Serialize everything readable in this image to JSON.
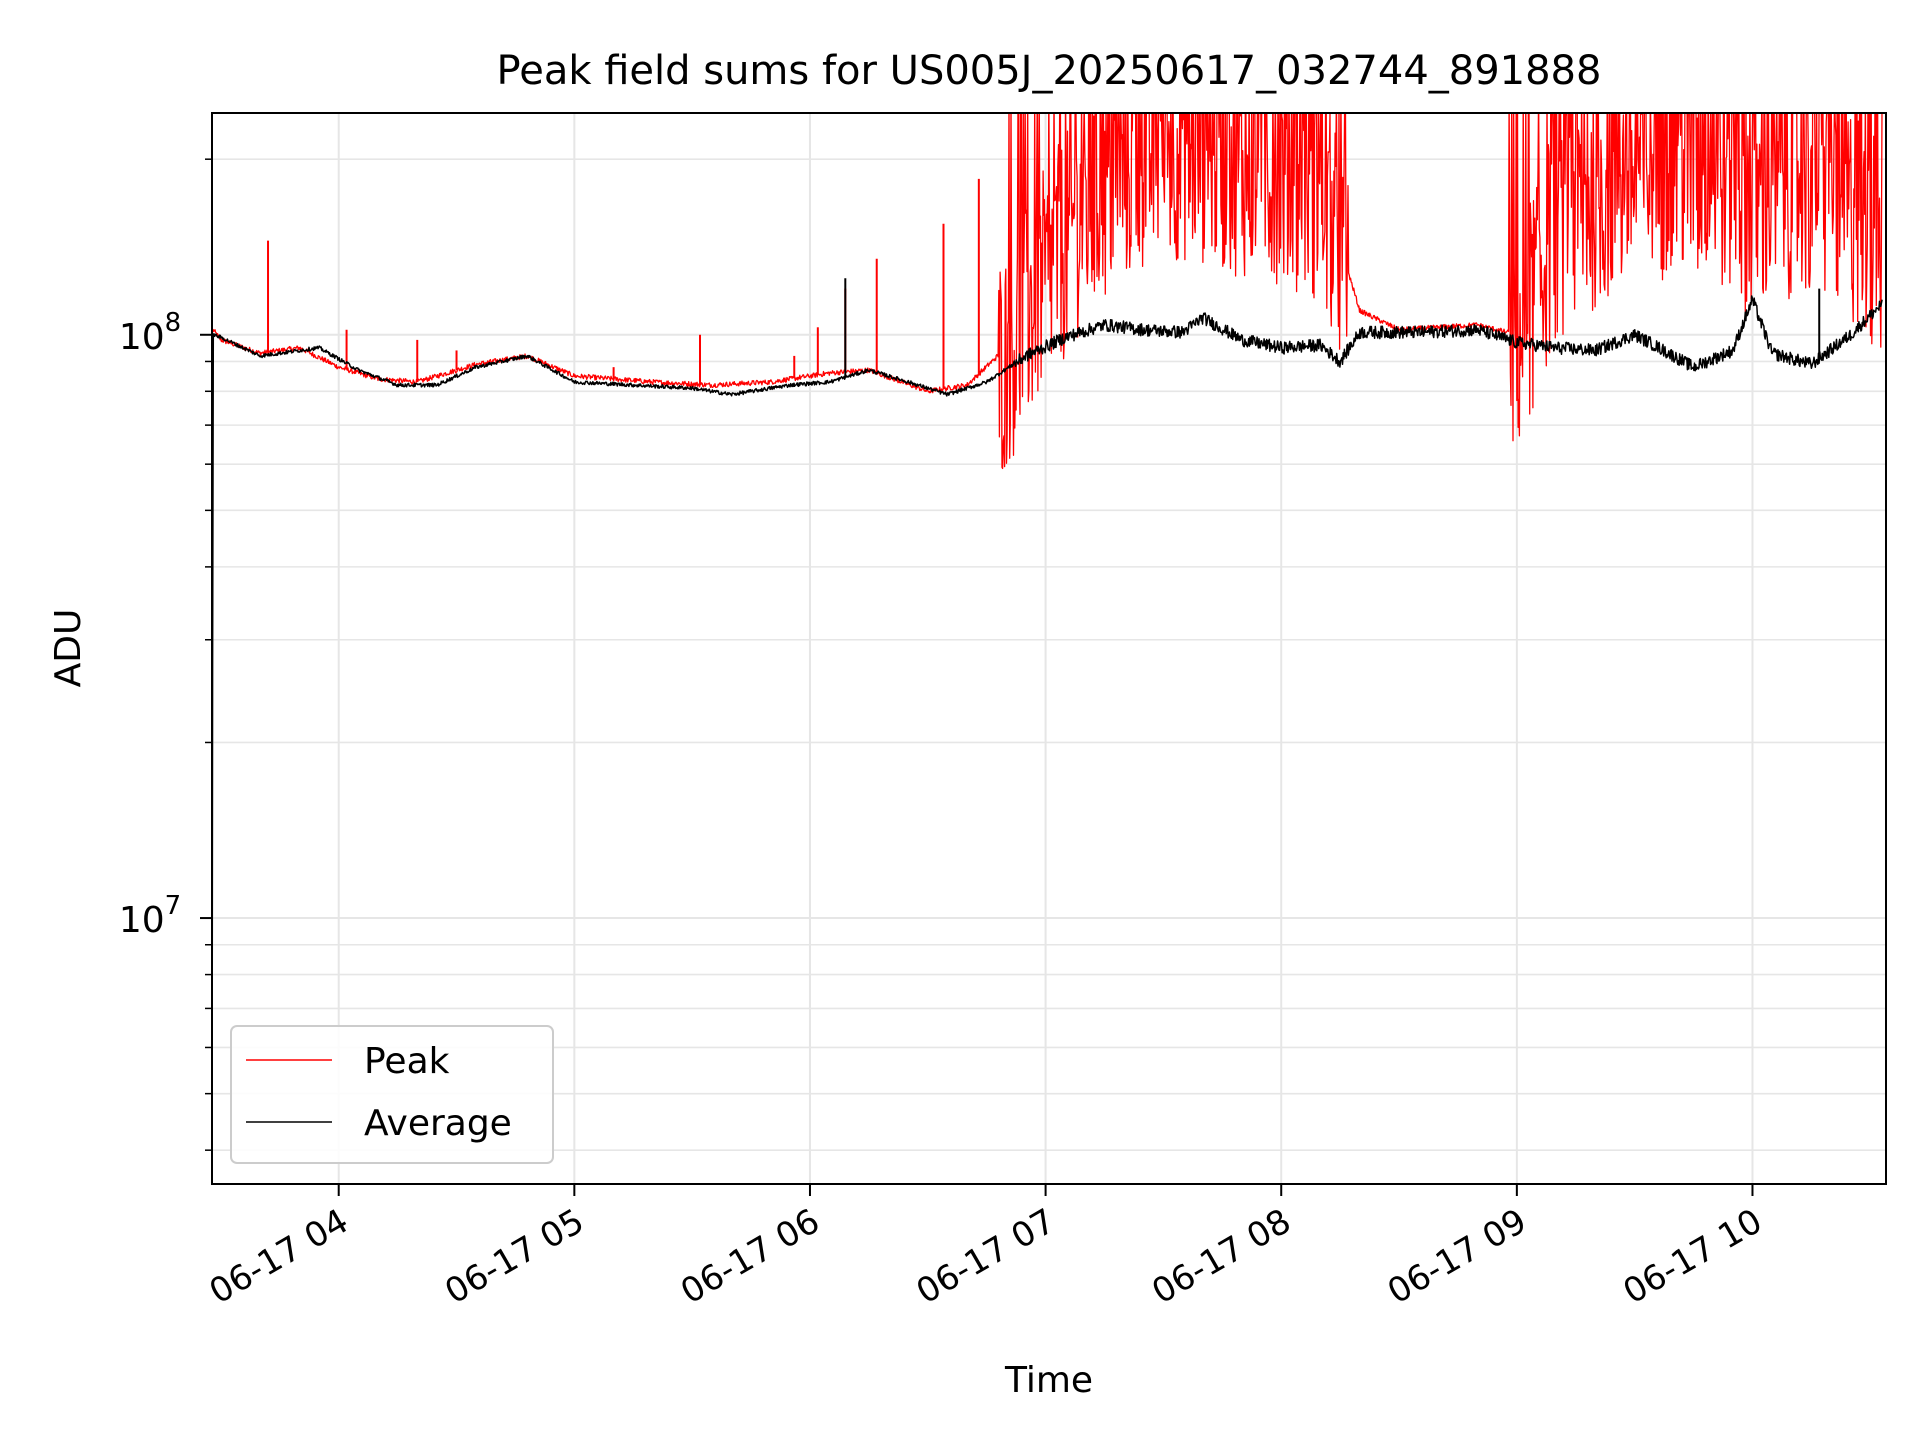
{
  "chart_data": {
    "type": "line",
    "title": "Peak field sums for US005J_20250617_032744_891888",
    "xlabel": "Time",
    "ylabel": "ADU",
    "y_scale": "log",
    "ylim": [
      3500000,
      240000000
    ],
    "xlim": [
      "2025-06-17 03:27:44",
      "2025-06-17 10:34:00"
    ],
    "x_ticks": [
      {
        "t": "2025-06-17 04:00",
        "label": "06-17 04"
      },
      {
        "t": "2025-06-17 05:00",
        "label": "06-17 05"
      },
      {
        "t": "2025-06-17 06:00",
        "label": "06-17 06"
      },
      {
        "t": "2025-06-17 07:00",
        "label": "06-17 07"
      },
      {
        "t": "2025-06-17 08:00",
        "label": "06-17 08"
      },
      {
        "t": "2025-06-17 09:00",
        "label": "06-17 09"
      },
      {
        "t": "2025-06-17 10:00",
        "label": "06-17 10"
      }
    ],
    "y_ticks": [
      {
        "value": 10000000,
        "base": "10",
        "exp": "7"
      },
      {
        "value": 100000000,
        "base": "10",
        "exp": "8"
      }
    ],
    "grid": true,
    "legend": "lower-left",
    "series": [
      {
        "name": "Peak",
        "color": "#ff0000",
        "x": [
          "2025-06-17 03:28",
          "2025-06-17 03:30",
          "2025-06-17 03:40",
          "2025-06-17 03:50",
          "2025-06-17 04:00",
          "2025-06-17 04:10",
          "2025-06-17 04:20",
          "2025-06-17 04:35",
          "2025-06-17 04:48",
          "2025-06-17 05:00",
          "2025-06-17 05:20",
          "2025-06-17 05:35",
          "2025-06-17 05:50",
          "2025-06-17 06:05",
          "2025-06-17 06:15",
          "2025-06-17 06:30",
          "2025-06-17 06:40",
          "2025-06-17 06:50",
          "2025-06-17 07:00",
          "2025-06-17 07:10",
          "2025-06-17 07:20",
          "2025-06-17 07:30",
          "2025-06-17 07:40",
          "2025-06-17 07:50",
          "2025-06-17 08:00",
          "2025-06-17 08:10",
          "2025-06-17 08:20",
          "2025-06-17 08:30",
          "2025-06-17 08:40",
          "2025-06-17 08:50",
          "2025-06-17 09:00",
          "2025-06-17 09:10",
          "2025-06-17 09:20",
          "2025-06-17 09:30",
          "2025-06-17 09:40",
          "2025-06-17 09:50",
          "2025-06-17 10:00",
          "2025-06-17 10:10",
          "2025-06-17 10:20",
          "2025-06-17 10:33"
        ],
        "y": [
          102000000,
          98000000,
          93000000,
          95000000,
          88000000,
          84000000,
          83000000,
          89000000,
          92000000,
          85000000,
          83000000,
          82000000,
          83000000,
          86000000,
          87000000,
          80000000,
          82000000,
          95000000,
          130000000,
          170000000,
          200000000,
          220000000,
          215000000,
          205000000,
          200000000,
          185000000,
          110000000,
          102000000,
          103000000,
          104000000,
          100000000,
          160000000,
          180000000,
          200000000,
          205000000,
          200000000,
          175000000,
          190000000,
          185000000,
          150000000
        ],
        "spikes": [
          {
            "t": "2025-06-17 03:42",
            "y": 145000000
          },
          {
            "t": "2025-06-17 04:02",
            "y": 102000000
          },
          {
            "t": "2025-06-17 04:20",
            "y": 98000000
          },
          {
            "t": "2025-06-17 04:30",
            "y": 94000000
          },
          {
            "t": "2025-06-17 05:10",
            "y": 88000000
          },
          {
            "t": "2025-06-17 05:32",
            "y": 100000000
          },
          {
            "t": "2025-06-17 05:56",
            "y": 92000000
          },
          {
            "t": "2025-06-17 06:02",
            "y": 103000000
          },
          {
            "t": "2025-06-17 06:09",
            "y": 120000000
          },
          {
            "t": "2025-06-17 06:17",
            "y": 135000000
          },
          {
            "t": "2025-06-17 06:34",
            "y": 155000000
          },
          {
            "t": "2025-06-17 06:43",
            "y": 185000000
          }
        ]
      },
      {
        "name": "Average",
        "color": "#000000",
        "x": [
          "2025-06-17 03:27:44",
          "2025-06-17 03:28",
          "2025-06-17 03:30",
          "2025-06-17 03:40",
          "2025-06-17 03:50",
          "2025-06-17 03:55",
          "2025-06-17 04:05",
          "2025-06-17 04:15",
          "2025-06-17 04:25",
          "2025-06-17 04:35",
          "2025-06-17 04:48",
          "2025-06-17 05:00",
          "2025-06-17 05:15",
          "2025-06-17 05:30",
          "2025-06-17 05:40",
          "2025-06-17 05:55",
          "2025-06-17 06:05",
          "2025-06-17 06:15",
          "2025-06-17 06:25",
          "2025-06-17 06:35",
          "2025-06-17 06:45",
          "2025-06-17 06:55",
          "2025-06-17 07:05",
          "2025-06-17 07:15",
          "2025-06-17 07:25",
          "2025-06-17 07:35",
          "2025-06-17 07:40",
          "2025-06-17 07:50",
          "2025-06-17 08:00",
          "2025-06-17 08:10",
          "2025-06-17 08:15",
          "2025-06-17 08:20",
          "2025-06-17 08:35",
          "2025-06-17 08:50",
          "2025-06-17 09:00",
          "2025-06-17 09:10",
          "2025-06-17 09:20",
          "2025-06-17 09:30",
          "2025-06-17 09:35",
          "2025-06-17 09:45",
          "2025-06-17 09:55",
          "2025-06-17 10:00",
          "2025-06-17 10:05",
          "2025-06-17 10:15",
          "2025-06-17 10:25",
          "2025-06-17 10:33"
        ],
        "y": [
          3500000,
          100000000,
          99000000,
          92000000,
          94000000,
          95000000,
          87000000,
          82000000,
          82000000,
          88000000,
          92000000,
          83000000,
          82000000,
          81000000,
          79000000,
          82000000,
          83000000,
          87000000,
          83000000,
          79000000,
          83000000,
          92000000,
          99000000,
          104000000,
          102000000,
          101000000,
          107000000,
          98000000,
          95000000,
          96000000,
          90000000,
          101000000,
          101000000,
          102000000,
          97000000,
          95000000,
          94000000,
          100000000,
          96000000,
          88000000,
          94000000,
          115000000,
          93000000,
          89000000,
          100000000,
          113000000
        ],
        "spikes": [
          {
            "t": "2025-06-17 06:09",
            "y": 125000000
          },
          {
            "t": "2025-06-17 10:17",
            "y": 120000000
          }
        ]
      }
    ]
  }
}
